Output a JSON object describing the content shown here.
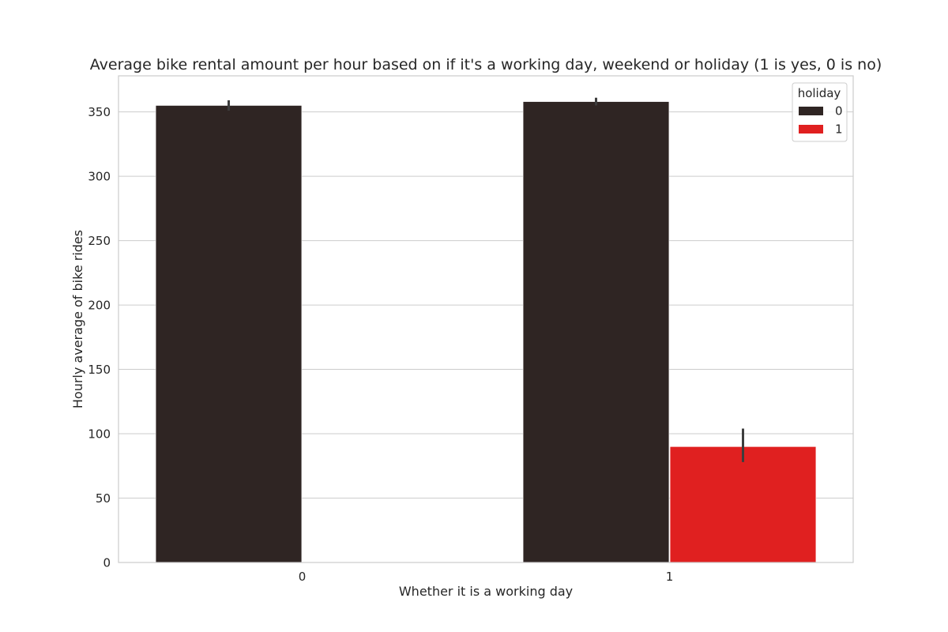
{
  "chart_data": {
    "type": "bar",
    "title": "Average bike rental amount per hour based on if it's a working day, weekend or holiday (1 is yes, 0 is no)",
    "xlabel": "Whether it is a working day",
    "ylabel": "Hourly average of bike rides",
    "categories": [
      "0",
      "1"
    ],
    "ylim": [
      0,
      378
    ],
    "yticks": [
      0,
      50,
      100,
      150,
      200,
      250,
      300,
      350
    ],
    "grid": true,
    "legend": {
      "title": "holiday",
      "placement": "top-right"
    },
    "series": [
      {
        "name": "0",
        "color": "#2f2523",
        "values": [
          355,
          358
        ],
        "error_low": [
          351,
          355
        ],
        "error_high": [
          359,
          361
        ]
      },
      {
        "name": "1",
        "color": "#e02020",
        "values": [
          null,
          90
        ],
        "error_low": [
          null,
          78
        ],
        "error_high": [
          null,
          104
        ]
      }
    ]
  }
}
